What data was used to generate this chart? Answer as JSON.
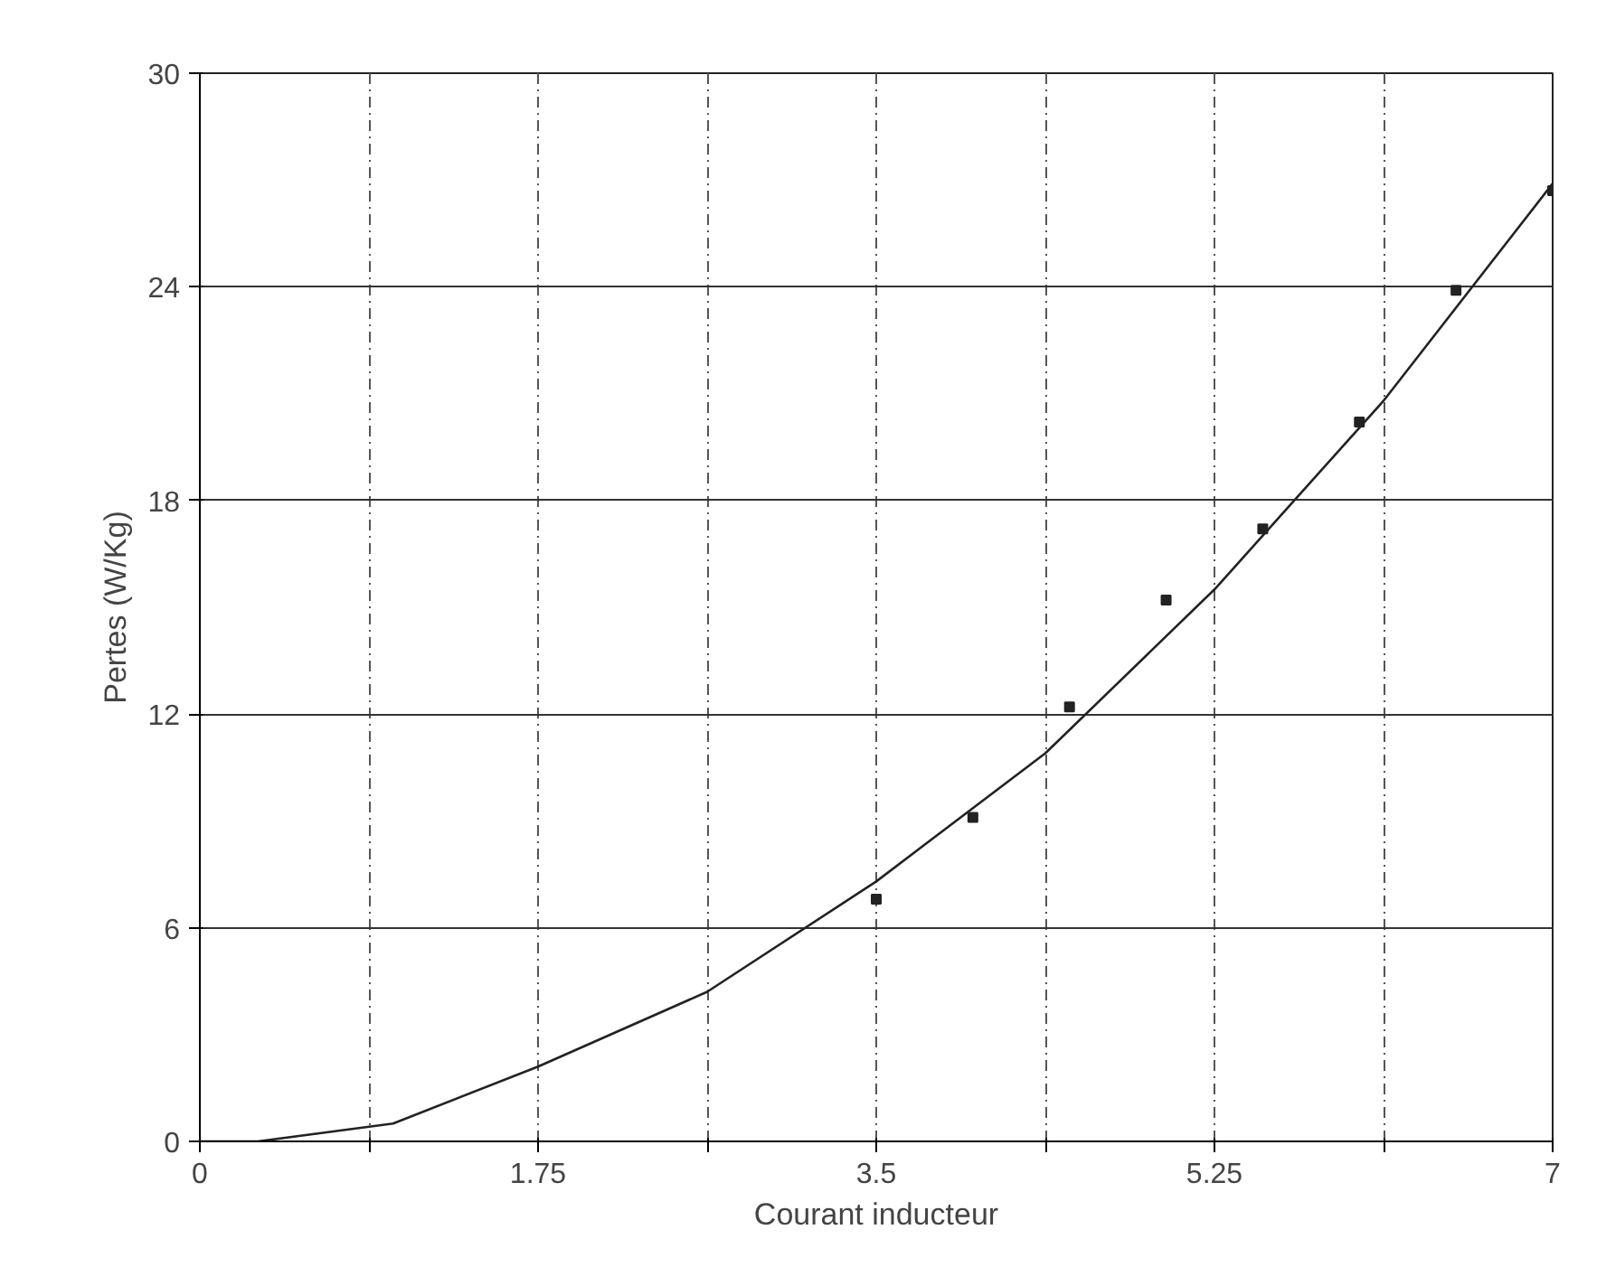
{
  "chart_data": {
    "type": "scatter",
    "xlabel": "Courant inducteur",
    "ylabel": "Pertes (W/Kg)",
    "xlim": [
      0,
      7
    ],
    "ylim": [
      0,
      30
    ],
    "xticks": [
      0,
      {
        "value": 0.875,
        "label": null
      },
      1.75,
      {
        "value": 2.625,
        "label": null
      },
      3.5,
      {
        "value": 4.375,
        "label": null
      },
      5.25,
      {
        "value": 6.125,
        "label": null
      },
      7
    ],
    "yticks": [
      0,
      6,
      12,
      18,
      24,
      30
    ],
    "grid": true,
    "series": [
      {
        "marker": "square",
        "color": "#222222",
        "x": [
          3.5,
          4.0,
          4.5,
          5.0,
          5.5,
          6.0,
          6.5,
          7.0
        ],
        "values": [
          6.8,
          9.1,
          12.2,
          15.2,
          17.2,
          20.2,
          23.9,
          26.7
        ]
      },
      {
        "type": "line",
        "line_style": "solid",
        "color": "#222222",
        "x": [
          0,
          0.3,
          1.0,
          1.75,
          2.625,
          3.5,
          4.375,
          5.25,
          6.125,
          7.0
        ],
        "values": [
          0,
          0,
          0.5,
          2.1,
          4.2,
          7.3,
          10.9,
          15.5,
          20.8,
          26.9
        ]
      }
    ]
  }
}
